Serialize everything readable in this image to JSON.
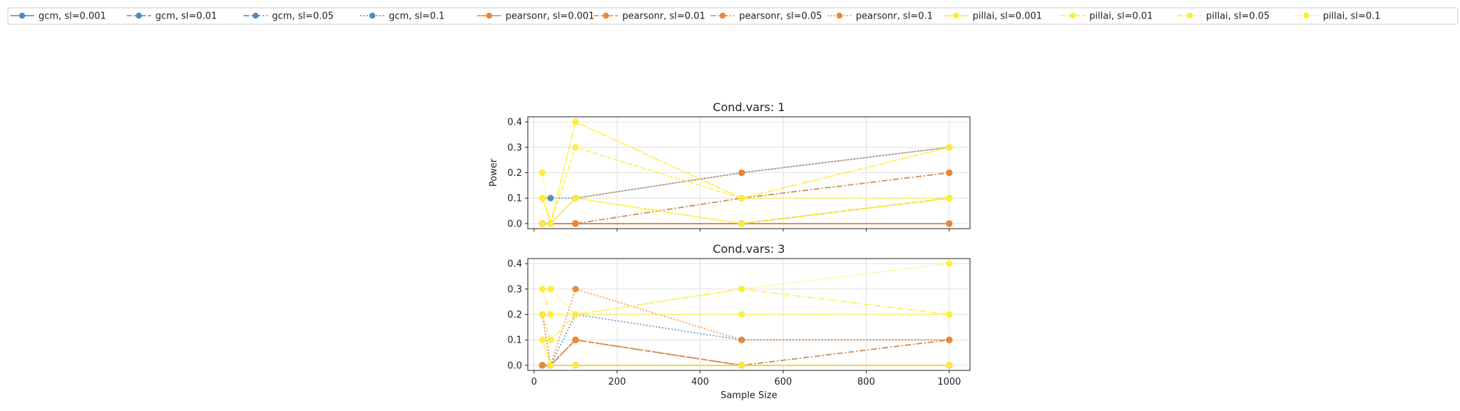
{
  "colors": {
    "gcm": "#4d8ac0",
    "pearsonr": "#ee8631",
    "pillai": "#fded39",
    "grid": "#d9d9d9",
    "axis": "#222222"
  },
  "chart_data": [
    {
      "type": "line",
      "title": "Cond.vars: 1",
      "xlabel": "",
      "ylabel": "Power",
      "xlim": [
        -15,
        1050
      ],
      "ylim": [
        -0.02,
        0.42
      ],
      "xticks": [
        0,
        200,
        400,
        600,
        800,
        1000
      ],
      "yticks": [
        0.0,
        0.1,
        0.2,
        0.3,
        0.4
      ],
      "x": [
        20,
        40,
        100,
        500,
        1000
      ],
      "grid": true,
      "series": [
        {
          "name": "gcm, sl=0.001",
          "group": "gcm",
          "style": "solid",
          "values": [
            0.0,
            0.0,
            0.0,
            0.0,
            0.0
          ]
        },
        {
          "name": "gcm, sl=0.01",
          "group": "gcm",
          "style": "dashed",
          "values": [
            0.0,
            0.0,
            0.0,
            0.0,
            0.1
          ]
        },
        {
          "name": "gcm, sl=0.05",
          "group": "gcm",
          "style": "dashdot",
          "values": [
            0.0,
            0.0,
            0.0,
            0.1,
            0.2
          ]
        },
        {
          "name": "gcm, sl=0.1",
          "group": "gcm",
          "style": "dotted",
          "values": [
            0.1,
            0.1,
            0.1,
            0.2,
            0.3
          ]
        },
        {
          "name": "pearsonr, sl=0.001",
          "group": "pearsonr",
          "style": "solid",
          "values": [
            0.0,
            0.0,
            0.0,
            0.0,
            0.0
          ]
        },
        {
          "name": "pearsonr, sl=0.01",
          "group": "pearsonr",
          "style": "dashed",
          "values": [
            0.0,
            0.0,
            0.0,
            0.0,
            0.1
          ]
        },
        {
          "name": "pearsonr, sl=0.05",
          "group": "pearsonr",
          "style": "dashdot",
          "values": [
            0.0,
            0.0,
            0.0,
            0.1,
            0.2
          ]
        },
        {
          "name": "pearsonr, sl=0.1",
          "group": "pearsonr",
          "style": "dotted",
          "values": [
            0.0,
            0.0,
            0.1,
            0.2,
            0.3
          ]
        },
        {
          "name": "pillai, sl=0.001",
          "group": "pillai",
          "style": "solid",
          "values": [
            0.1,
            0.0,
            0.1,
            0.0,
            0.1
          ]
        },
        {
          "name": "pillai, sl=0.01",
          "group": "pillai",
          "style": "dashed",
          "values": [
            0.0,
            0.0,
            0.3,
            0.1,
            0.1
          ]
        },
        {
          "name": "pillai, sl=0.05",
          "group": "pillai",
          "style": "dashdot",
          "values": [
            0.1,
            0.0,
            0.4,
            0.1,
            0.3
          ]
        },
        {
          "name": "pillai, sl=0.1",
          "group": "pillai",
          "style": "dotted",
          "values": [
            0.2,
            0.0,
            0.4,
            0.1,
            0.3
          ]
        }
      ]
    },
    {
      "type": "line",
      "title": "Cond.vars: 3",
      "xlabel": "Sample Size",
      "ylabel": "",
      "xlim": [
        -15,
        1050
      ],
      "ylim": [
        -0.02,
        0.42
      ],
      "xticks": [
        0,
        200,
        400,
        600,
        800,
        1000
      ],
      "yticks": [
        0.0,
        0.1,
        0.2,
        0.3,
        0.4
      ],
      "x": [
        20,
        40,
        100,
        500,
        1000
      ],
      "grid": true,
      "series": [
        {
          "name": "gcm, sl=0.001",
          "group": "gcm",
          "style": "solid",
          "values": [
            0.0,
            0.0,
            0.0,
            0.0,
            0.0
          ]
        },
        {
          "name": "gcm, sl=0.01",
          "group": "gcm",
          "style": "dashed",
          "values": [
            0.0,
            0.0,
            0.1,
            0.0,
            0.0
          ]
        },
        {
          "name": "gcm, sl=0.05",
          "group": "gcm",
          "style": "dashdot",
          "values": [
            0.0,
            0.0,
            0.1,
            0.0,
            0.1
          ]
        },
        {
          "name": "gcm, sl=0.1",
          "group": "gcm",
          "style": "dotted",
          "values": [
            0.2,
            0.0,
            0.2,
            0.1,
            0.1
          ]
        },
        {
          "name": "pearsonr, sl=0.001",
          "group": "pearsonr",
          "style": "solid",
          "values": [
            0.0,
            0.0,
            0.0,
            0.0,
            0.0
          ]
        },
        {
          "name": "pearsonr, sl=0.01",
          "group": "pearsonr",
          "style": "dashed",
          "values": [
            0.0,
            0.0,
            0.1,
            0.0,
            0.0
          ]
        },
        {
          "name": "pearsonr, sl=0.05",
          "group": "pearsonr",
          "style": "dashdot",
          "values": [
            0.0,
            0.0,
            0.1,
            0.0,
            0.1
          ]
        },
        {
          "name": "pearsonr, sl=0.1",
          "group": "pearsonr",
          "style": "dotted",
          "values": [
            0.2,
            0.0,
            0.3,
            0.1,
            0.1
          ]
        },
        {
          "name": "pillai, sl=0.001",
          "group": "pillai",
          "style": "solid",
          "values": [
            0.1,
            0.0,
            0.0,
            0.0,
            0.0
          ]
        },
        {
          "name": "pillai, sl=0.01",
          "group": "pillai",
          "style": "dashed",
          "values": [
            0.2,
            0.1,
            0.2,
            0.2,
            0.2
          ]
        },
        {
          "name": "pillai, sl=0.05",
          "group": "pillai",
          "style": "dashdot",
          "values": [
            0.3,
            0.2,
            0.2,
            0.3,
            0.2
          ]
        },
        {
          "name": "pillai, sl=0.1",
          "group": "pillai",
          "style": "dotted",
          "values": [
            0.3,
            0.3,
            0.2,
            0.3,
            0.4
          ]
        }
      ]
    }
  ]
}
